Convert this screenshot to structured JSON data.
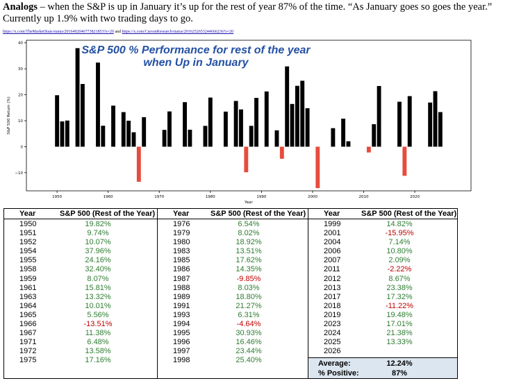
{
  "header": {
    "bold": "Analogs",
    "text": " – when the S&P is up in January it’s up for the rest of year 87% of the time. “As January goes so goes the year.” Currently up 1.9% with two trading days to go.",
    "link1": "https://x.com/TheMarketStats/status/2016492046773821853?s=20",
    "link_sep": " and ",
    "link2": "https://x.com/CarsonResearch/status/2016252653244666236?s=20"
  },
  "chart_data": {
    "type": "bar",
    "title": "S&P 500 % Performance for rest of the year",
    "subtitle": "when Up in January",
    "xlabel": "Year",
    "ylabel": "S&P 500 Return (%)",
    "xlim": [
      1944,
      2031
    ],
    "ylim": [
      -17,
      41
    ],
    "xticks": [
      1950,
      1960,
      1970,
      1980,
      1990,
      2000,
      2010,
      2020
    ],
    "yticks": [
      -10,
      0,
      10,
      20,
      30,
      40
    ],
    "grid": false,
    "positive_color": "#000000",
    "negative_color": "#e74c3c",
    "x": [
      1950,
      1951,
      1952,
      1954,
      1955,
      1958,
      1959,
      1961,
      1963,
      1964,
      1965,
      1966,
      1967,
      1971,
      1972,
      1975,
      1976,
      1979,
      1980,
      1983,
      1985,
      1986,
      1987,
      1988,
      1989,
      1991,
      1993,
      1994,
      1995,
      1996,
      1997,
      1998,
      1999,
      2001,
      2004,
      2006,
      2007,
      2011,
      2012,
      2013,
      2017,
      2018,
      2019,
      2023,
      2024,
      2025
    ],
    "values": [
      19.82,
      9.74,
      10.07,
      37.96,
      24.16,
      32.4,
      8.07,
      15.81,
      13.32,
      10.01,
      5.56,
      -13.51,
      11.38,
      6.48,
      13.58,
      17.16,
      6.54,
      8.02,
      18.92,
      13.51,
      17.62,
      14.35,
      -9.85,
      8.03,
      18.8,
      21.27,
      6.31,
      -4.64,
      30.93,
      16.46,
      23.44,
      25.4,
      14.82,
      -15.95,
      7.14,
      10.8,
      2.09,
      -2.22,
      8.67,
      23.38,
      17.32,
      -11.22,
      19.48,
      17.01,
      21.38,
      13.33
    ]
  },
  "table": {
    "col_year": "Year",
    "col_perf": "S&P 500 (Rest of the Year)",
    "columns": [
      [
        {
          "year": "1950",
          "perf": "19.82%",
          "neg": false
        },
        {
          "year": "1951",
          "perf": "9.74%",
          "neg": false
        },
        {
          "year": "1952",
          "perf": "10.07%",
          "neg": false
        },
        {
          "year": "1954",
          "perf": "37.96%",
          "neg": false
        },
        {
          "year": "1955",
          "perf": "24.16%",
          "neg": false
        },
        {
          "year": "1958",
          "perf": "32.40%",
          "neg": false
        },
        {
          "year": "1959",
          "perf": "8.07%",
          "neg": false
        },
        {
          "year": "1961",
          "perf": "15.81%",
          "neg": false
        },
        {
          "year": "1963",
          "perf": "13.32%",
          "neg": false
        },
        {
          "year": "1964",
          "perf": "10.01%",
          "neg": false
        },
        {
          "year": "1965",
          "perf": "5.56%",
          "neg": false
        },
        {
          "year": "1966",
          "perf": "-13.51%",
          "neg": true
        },
        {
          "year": "1967",
          "perf": "11.38%",
          "neg": false
        },
        {
          "year": "1971",
          "perf": "6.48%",
          "neg": false
        },
        {
          "year": "1972",
          "perf": "13.58%",
          "neg": false
        },
        {
          "year": "1975",
          "perf": "17.16%",
          "neg": false
        }
      ],
      [
        {
          "year": "1976",
          "perf": "6.54%",
          "neg": false
        },
        {
          "year": "1979",
          "perf": "8.02%",
          "neg": false
        },
        {
          "year": "1980",
          "perf": "18.92%",
          "neg": false
        },
        {
          "year": "1983",
          "perf": "13.51%",
          "neg": false
        },
        {
          "year": "1985",
          "perf": "17.62%",
          "neg": false
        },
        {
          "year": "1986",
          "perf": "14.35%",
          "neg": false
        },
        {
          "year": "1987",
          "perf": "-9.85%",
          "neg": true
        },
        {
          "year": "1988",
          "perf": "8.03%",
          "neg": false
        },
        {
          "year": "1989",
          "perf": "18.80%",
          "neg": false
        },
        {
          "year": "1991",
          "perf": "21.27%",
          "neg": false
        },
        {
          "year": "1993",
          "perf": "6.31%",
          "neg": false
        },
        {
          "year": "1994",
          "perf": "-4.64%",
          "neg": true
        },
        {
          "year": "1995",
          "perf": "30.93%",
          "neg": false
        },
        {
          "year": "1996",
          "perf": "16.46%",
          "neg": false
        },
        {
          "year": "1997",
          "perf": "23.44%",
          "neg": false
        },
        {
          "year": "1998",
          "perf": "25.40%",
          "neg": false
        }
      ],
      [
        {
          "year": "1999",
          "perf": "14.82%",
          "neg": false
        },
        {
          "year": "2001",
          "perf": "-15.95%",
          "neg": true
        },
        {
          "year": "2004",
          "perf": "7.14%",
          "neg": false
        },
        {
          "year": "2006",
          "perf": "10.80%",
          "neg": false
        },
        {
          "year": "2007",
          "perf": "2.09%",
          "neg": false
        },
        {
          "year": "2011",
          "perf": "-2.22%",
          "neg": true
        },
        {
          "year": "2012",
          "perf": "8.67%",
          "neg": false
        },
        {
          "year": "2013",
          "perf": "23.38%",
          "neg": false
        },
        {
          "year": "2017",
          "perf": "17.32%",
          "neg": false
        },
        {
          "year": "2018",
          "perf": "-11.22%",
          "neg": true
        },
        {
          "year": "2019",
          "perf": "19.48%",
          "neg": false
        },
        {
          "year": "2023",
          "perf": "17.01%",
          "neg": false
        },
        {
          "year": "2024",
          "perf": "21.38%",
          "neg": false
        },
        {
          "year": "2025",
          "perf": "13.33%",
          "neg": false
        },
        {
          "year": "2026",
          "perf": "",
          "neg": false
        }
      ]
    ],
    "summary": {
      "average_label": "Average:",
      "average_value": "12.24%",
      "positive_label": "% Positive:",
      "positive_value": "87%"
    },
    "colors": {
      "positive": "#2e7d32",
      "negative": "#c00000",
      "summary_bg": "#dce6f0"
    }
  }
}
